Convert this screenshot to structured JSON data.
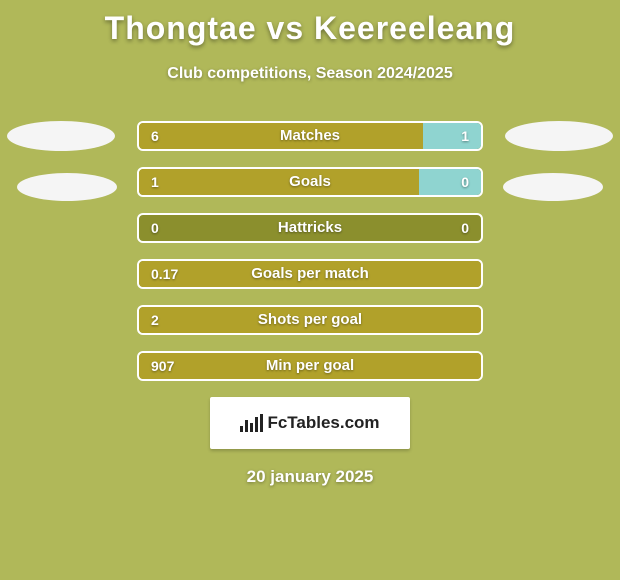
{
  "title": "Thongtae vs Keereeleang",
  "subtitle": "Club competitions, Season 2024/2025",
  "date": "20 january 2025",
  "logo_text": "FcTables.com",
  "colors": {
    "page_bg": "#b0b859",
    "bar_bg": "#8b8f2d",
    "left_fill": "#b1a12a",
    "right_fill": "#8fd4d0",
    "border": "#ffffff",
    "text": "#ffffff",
    "badge_bg": "#f5f5f5",
    "logo_bg": "#ffffff",
    "logo_fg": "#222222"
  },
  "stats": [
    {
      "label": "Matches",
      "left_val": "6",
      "right_val": "1",
      "left_pct": 83,
      "right_pct": 17,
      "show_right_fill": true
    },
    {
      "label": "Goals",
      "left_val": "1",
      "right_val": "0",
      "left_pct": 82,
      "right_pct": 18,
      "show_right_fill": true
    },
    {
      "label": "Hattricks",
      "left_val": "0",
      "right_val": "0",
      "left_pct": 0,
      "right_pct": 0,
      "show_right_fill": false
    },
    {
      "label": "Goals per match",
      "left_val": "0.17",
      "right_val": "",
      "left_pct": 100,
      "right_pct": 0,
      "show_right_fill": false
    },
    {
      "label": "Shots per goal",
      "left_val": "2",
      "right_val": "",
      "left_pct": 100,
      "right_pct": 0,
      "show_right_fill": false
    },
    {
      "label": "Min per goal",
      "left_val": "907",
      "right_val": "",
      "left_pct": 100,
      "right_pct": 0,
      "show_right_fill": false
    }
  ]
}
